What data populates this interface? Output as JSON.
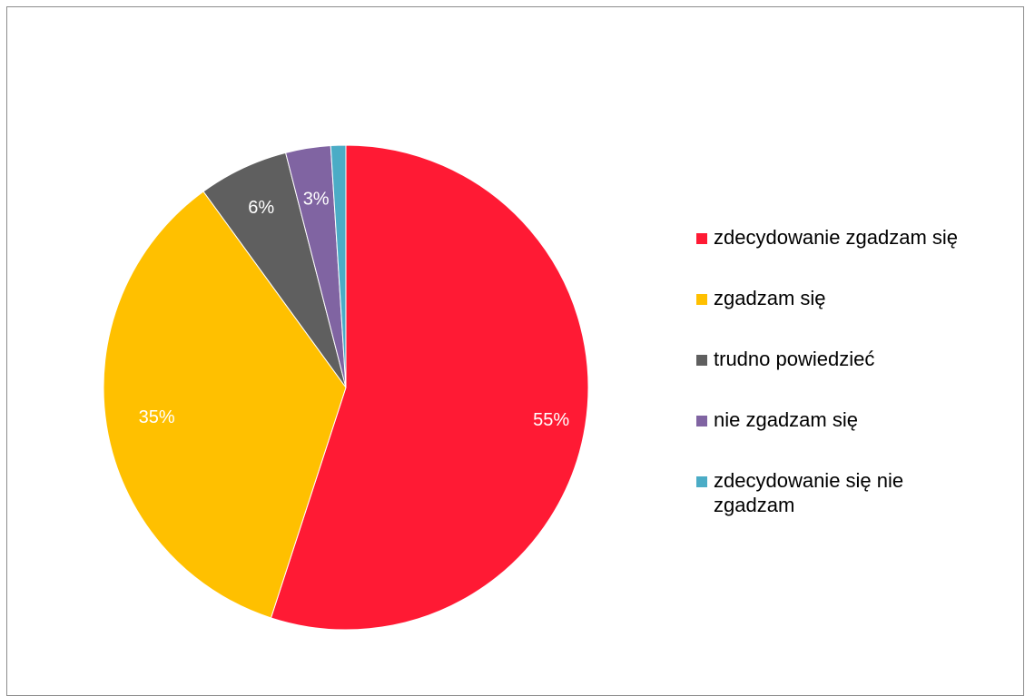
{
  "chart_data": {
    "type": "pie",
    "title": "",
    "slices": [
      {
        "name": "zdecydowanie zgadzam się",
        "value": 55,
        "label": "55%",
        "color": "#FF1A34"
      },
      {
        "name": "zgadzam się",
        "value": 35,
        "label": "35%",
        "color": "#FFC000"
      },
      {
        "name": "trudno powiedzieć",
        "value": 6,
        "label": "6%",
        "color": "#5F5F5F"
      },
      {
        "name": "nie zgadzam się",
        "value": 3,
        "label": "3%",
        "color": "#8064A2"
      },
      {
        "name": "zdecydowanie się nie zgadzam",
        "value": 1,
        "label": "",
        "color": "#4BACC6"
      }
    ],
    "legend_position": "right",
    "start_angle": "12 o'clock",
    "direction": "clockwise"
  }
}
